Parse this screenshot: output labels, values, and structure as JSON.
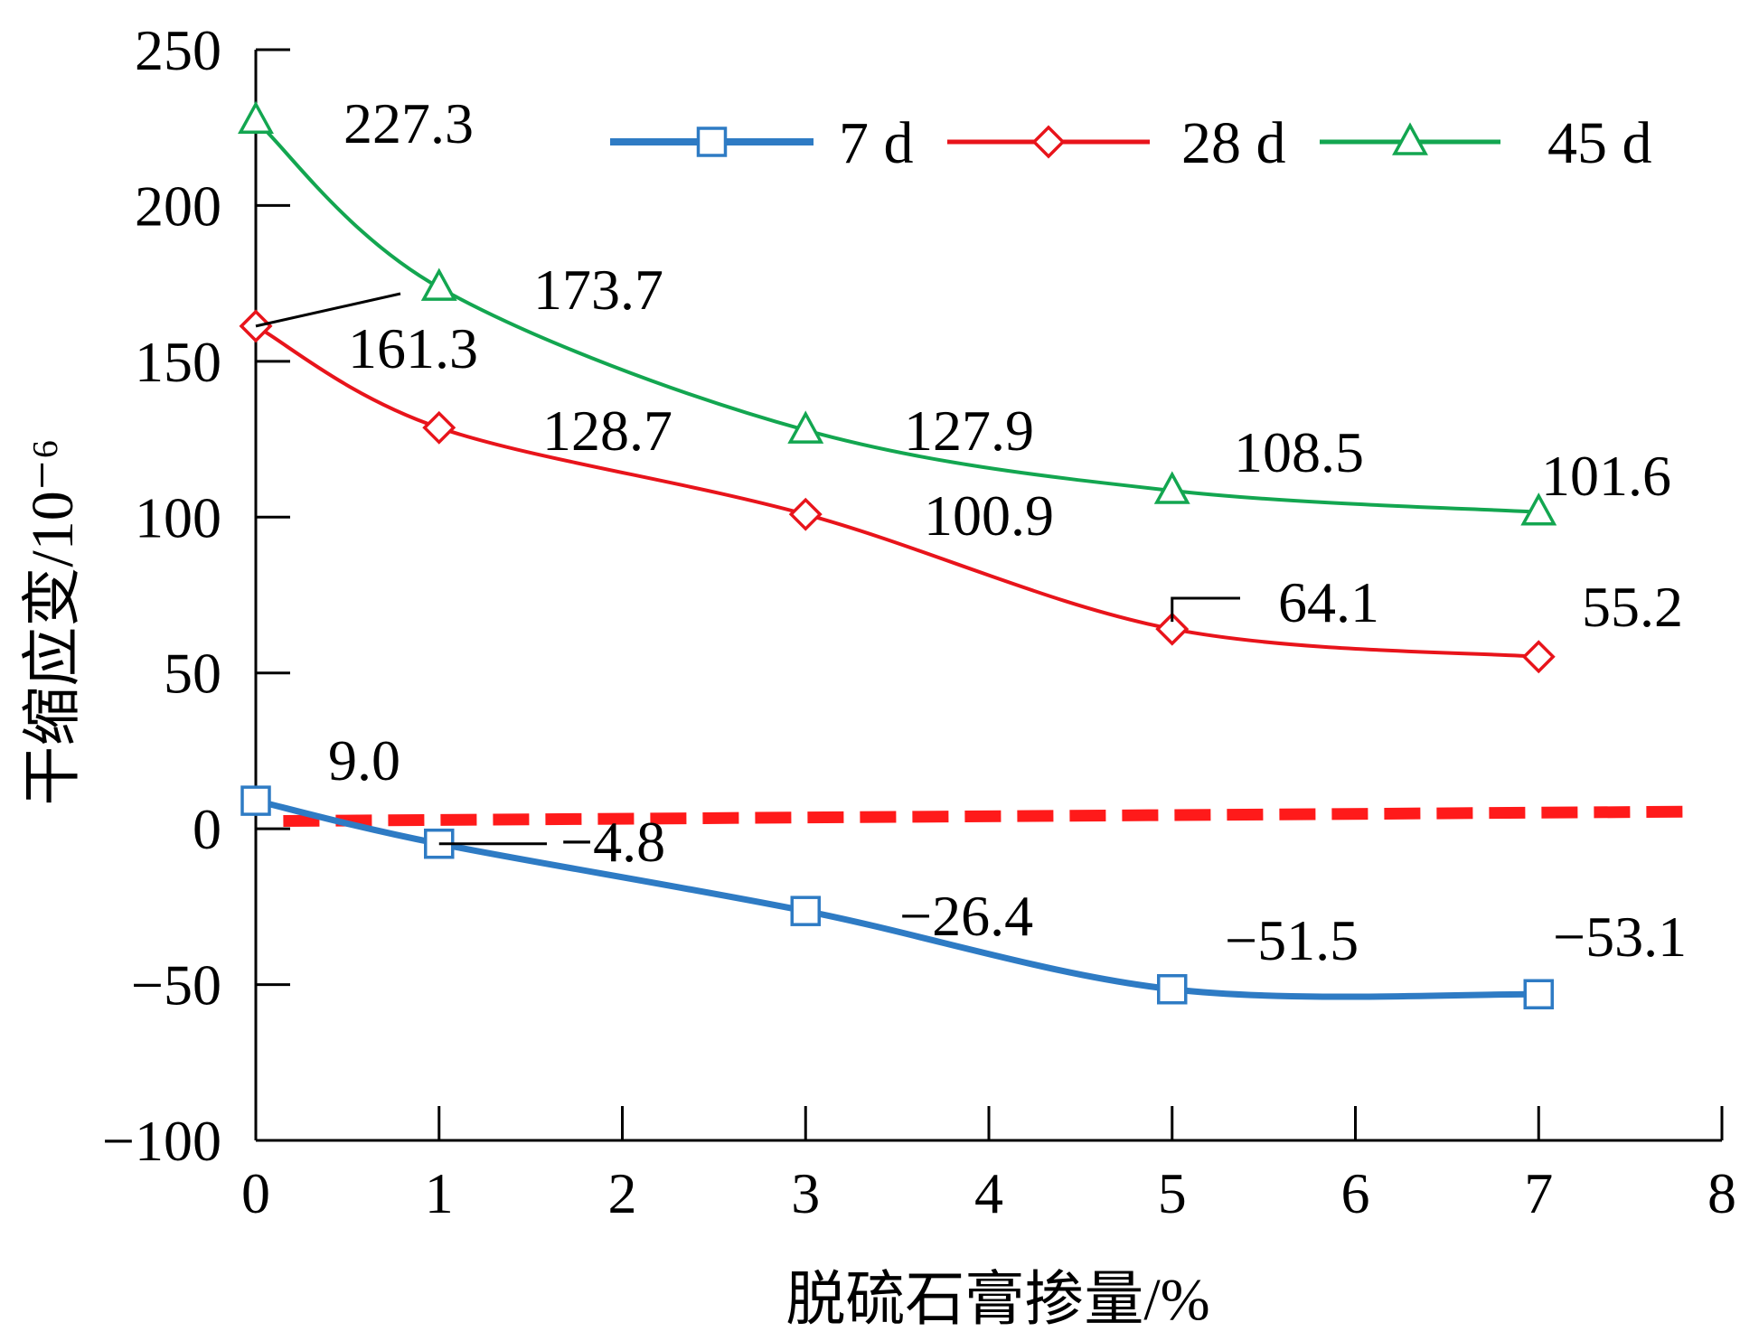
{
  "chart_data": {
    "type": "line",
    "xlabel": "脱硫石膏掺量/%",
    "ylabel": "干缩应变/10⁻⁶",
    "xlim": [
      0,
      8
    ],
    "ylim": [
      -100,
      250
    ],
    "x_ticks": [
      "0",
      "1",
      "2",
      "3",
      "4",
      "5",
      "6",
      "7",
      "8"
    ],
    "y_ticks": [
      "250",
      "200",
      "150",
      "100",
      "50",
      "0",
      "−50",
      "−100"
    ],
    "x": [
      0,
      1,
      3,
      5,
      7
    ],
    "legend_position": "top-right",
    "grid": false,
    "series": [
      {
        "name": "7 d",
        "marker": "square",
        "color": "#2E7BC4",
        "values": [
          9.0,
          -4.8,
          -26.4,
          -51.5,
          -53.1
        ],
        "labels": [
          "9.0",
          "−4.8",
          "−26.4",
          "−51.5",
          "−53.1"
        ]
      },
      {
        "name": "28 d",
        "marker": "diamond",
        "color": "#E8141B",
        "values": [
          161.3,
          128.7,
          100.9,
          64.1,
          55.2
        ],
        "labels": [
          "161.3",
          "128.7",
          "100.9",
          "64.1",
          "55.2"
        ]
      },
      {
        "name": "45 d",
        "marker": "triangle",
        "color": "#13A650",
        "values": [
          227.3,
          173.7,
          127.9,
          108.5,
          101.6
        ],
        "labels": [
          "227.3",
          "173.7",
          "127.9",
          "108.5",
          "101.6"
        ]
      }
    ],
    "reference_line": {
      "style": "dashed",
      "color": "#FF1A1A",
      "y_start": 2.5,
      "y_end": 5.5
    }
  }
}
